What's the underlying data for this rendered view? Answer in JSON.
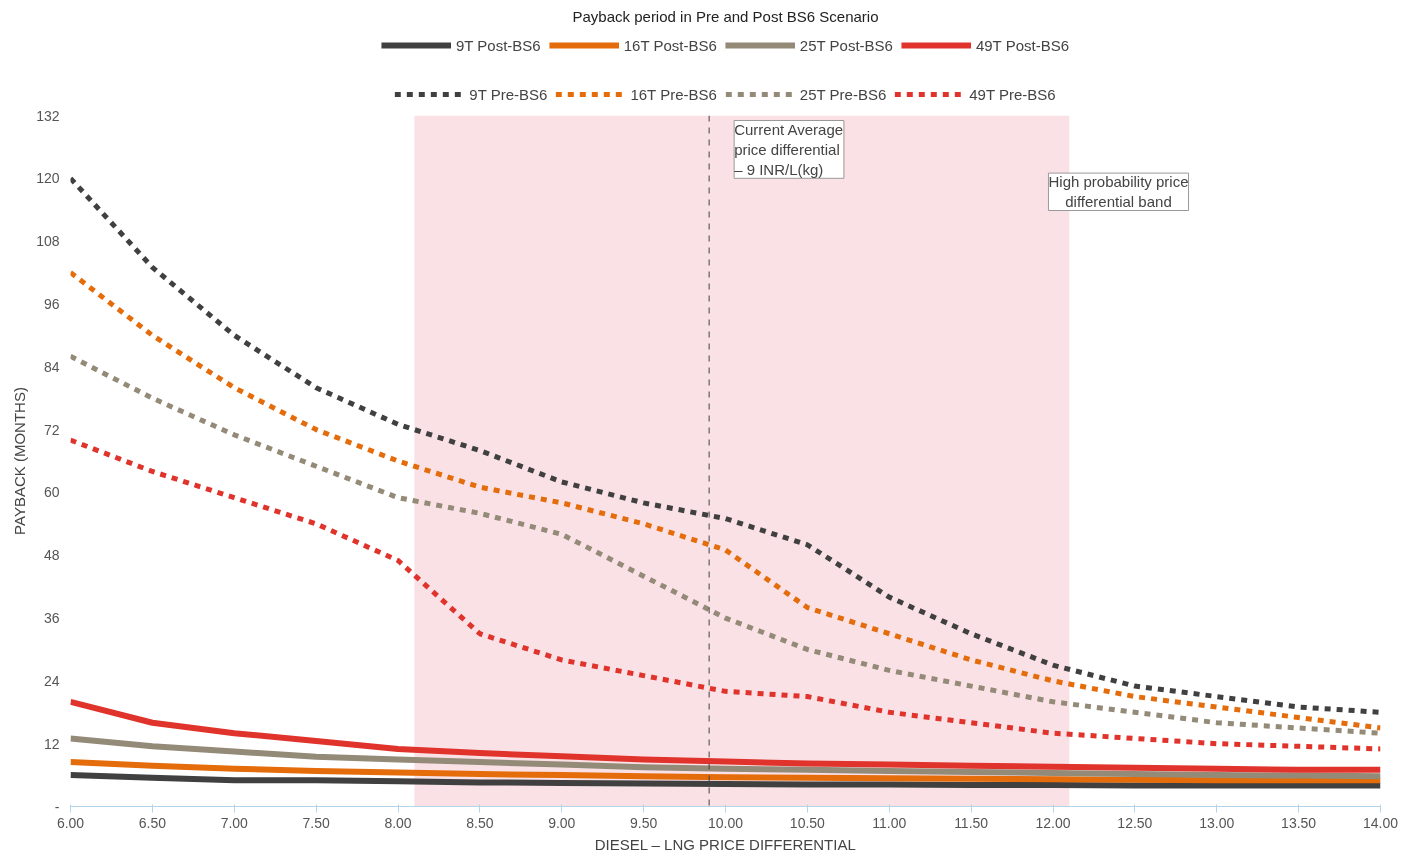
{
  "chart_data": {
    "type": "line",
    "title": "Payback period in Pre and Post BS6 Scenario",
    "xlabel": "DIESEL – LNG PRICE DIFFERENTIAL",
    "ylabel": "PAYBACK (MONTHS)",
    "x": [
      6.0,
      6.5,
      7.0,
      7.5,
      8.0,
      8.5,
      9.0,
      9.5,
      10.0,
      10.5,
      11.0,
      11.5,
      12.0,
      12.5,
      13.0,
      13.5,
      14.0
    ],
    "xlim": [
      6.0,
      14.0
    ],
    "xticks": [
      {
        "value": 6.0,
        "label": "6.00"
      },
      {
        "value": 6.5,
        "label": "6.50"
      },
      {
        "value": 7.0,
        "label": "7.00"
      },
      {
        "value": 7.5,
        "label": "7.50"
      },
      {
        "value": 8.0,
        "label": "8.00"
      },
      {
        "value": 8.5,
        "label": "8.50"
      },
      {
        "value": 9.0,
        "label": "9.00"
      },
      {
        "value": 9.5,
        "label": "9.50"
      },
      {
        "value": 10.0,
        "label": "10.00"
      },
      {
        "value": 10.5,
        "label": "10.50"
      },
      {
        "value": 11.0,
        "label": "11.00"
      },
      {
        "value": 11.5,
        "label": "11.50"
      },
      {
        "value": 12.0,
        "label": "12.00"
      },
      {
        "value": 12.5,
        "label": "12.50"
      },
      {
        "value": 13.0,
        "label": "13.00"
      },
      {
        "value": 13.5,
        "label": "13.50"
      },
      {
        "value": 14.0,
        "label": "14.00"
      }
    ],
    "ylim": [
      0,
      132
    ],
    "yticks": [
      {
        "value": 0,
        "label": "-"
      },
      12,
      24,
      36,
      48,
      60,
      72,
      84,
      96,
      108,
      120,
      132
    ],
    "grid": false,
    "legend": "top",
    "series": [
      {
        "name": "9T Post-BS6",
        "color": "#404040",
        "line_style": "solid",
        "values": [
          6,
          5.5,
          5,
          5,
          4.8,
          4.6,
          4.5,
          4.4,
          4.3,
          4.2,
          4.2,
          4.1,
          4.1,
          4,
          4,
          4,
          4
        ]
      },
      {
        "name": "16T Post-BS6",
        "color": "#e46c0a",
        "line_style": "solid",
        "values": [
          8.5,
          7.8,
          7.2,
          6.8,
          6.5,
          6.2,
          6,
          5.8,
          5.6,
          5.5,
          5.4,
          5.3,
          5.2,
          5.1,
          5,
          5,
          5
        ]
      },
      {
        "name": "25T Post-BS6",
        "color": "#948a78",
        "line_style": "solid",
        "values": [
          13,
          11.5,
          10.5,
          9.5,
          9,
          8.5,
          8,
          7.5,
          7.2,
          7,
          6.8,
          6.6,
          6.4,
          6.2,
          6,
          5.9,
          5.8
        ]
      },
      {
        "name": "49T Post-BS6",
        "color": "#e0332b",
        "line_style": "solid",
        "values": [
          20,
          16,
          14,
          12.5,
          11,
          10.2,
          9.6,
          9,
          8.6,
          8.2,
          8,
          7.8,
          7.6,
          7.4,
          7.2,
          7,
          7
        ]
      },
      {
        "name": "9T Pre-BS6",
        "color": "#404040",
        "line_style": "dashed",
        "values": [
          120,
          103,
          90,
          80,
          73,
          68,
          62,
          58,
          55,
          50,
          40,
          33,
          27,
          23,
          21,
          19,
          18
        ]
      },
      {
        "name": "16T Pre-BS6",
        "color": "#e46c0a",
        "line_style": "dashed",
        "values": [
          102,
          90,
          80,
          72,
          66,
          61,
          58,
          54,
          49,
          38,
          33,
          28,
          24,
          21,
          19,
          17,
          15
        ]
      },
      {
        "name": "25T Pre-BS6",
        "color": "#948a78",
        "line_style": "dashed",
        "values": [
          86,
          78,
          71,
          65,
          59,
          56,
          52,
          44,
          36,
          30,
          26,
          23,
          20,
          18,
          16,
          15,
          14
        ]
      },
      {
        "name": "49T Pre-BS6",
        "color": "#e0332b",
        "line_style": "dashed",
        "values": [
          70,
          64,
          59,
          54,
          47,
          33,
          28,
          25,
          22,
          21,
          18,
          16,
          14,
          13,
          12,
          11.5,
          11
        ]
      }
    ],
    "ref_lines": [
      {
        "axis": "x",
        "value": 9.9,
        "label": "Current Average\nprice differential\n– 9 INR/L(kg)",
        "color": "#404040",
        "line_style": "dashed"
      }
    ],
    "bands": [
      {
        "axis": "x",
        "from": 8.1,
        "to": 12.1,
        "label": "High probability price\ndifferential band",
        "color": "#f9e1e6"
      }
    ]
  }
}
